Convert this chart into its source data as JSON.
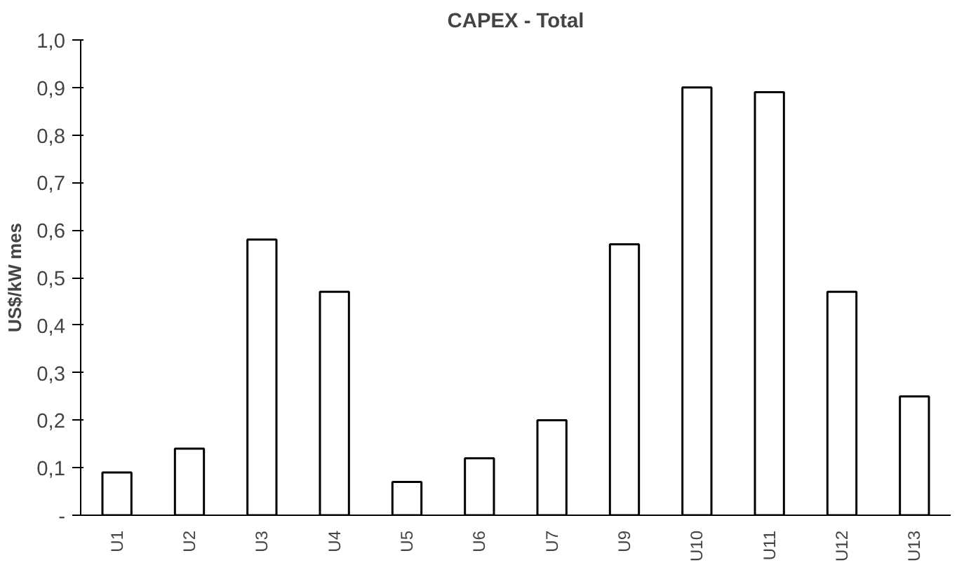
{
  "chart_data": {
    "type": "bar",
    "title": "CAPEX - Total",
    "ylabel": "US$/kW mes",
    "categories": [
      "U1",
      "U2",
      "U3",
      "U4",
      "U5",
      "U6",
      "U7",
      "U9",
      "U10",
      "U11",
      "U12",
      "U13"
    ],
    "values": [
      0.09,
      0.14,
      0.58,
      0.47,
      0.07,
      0.12,
      0.2,
      0.57,
      0.9,
      0.89,
      0.47,
      0.25
    ],
    "color": "#ffffff",
    "ylim": [
      0,
      1.0
    ],
    "yticks": [
      {
        "value": 0,
        "label": "-"
      },
      {
        "value": 0.1,
        "label": "0,1"
      },
      {
        "value": 0.2,
        "label": "0,2"
      },
      {
        "value": 0.3,
        "label": "0,3"
      },
      {
        "value": 0.4,
        "label": "0,4"
      },
      {
        "value": 0.5,
        "label": "0,5"
      },
      {
        "value": 0.6,
        "label": "0,6"
      },
      {
        "value": 0.7,
        "label": "0,7"
      },
      {
        "value": 0.8,
        "label": "0,8"
      },
      {
        "value": 0.9,
        "label": "0,9"
      },
      {
        "value": 1.0,
        "label": "1,0"
      }
    ],
    "grid": false
  }
}
